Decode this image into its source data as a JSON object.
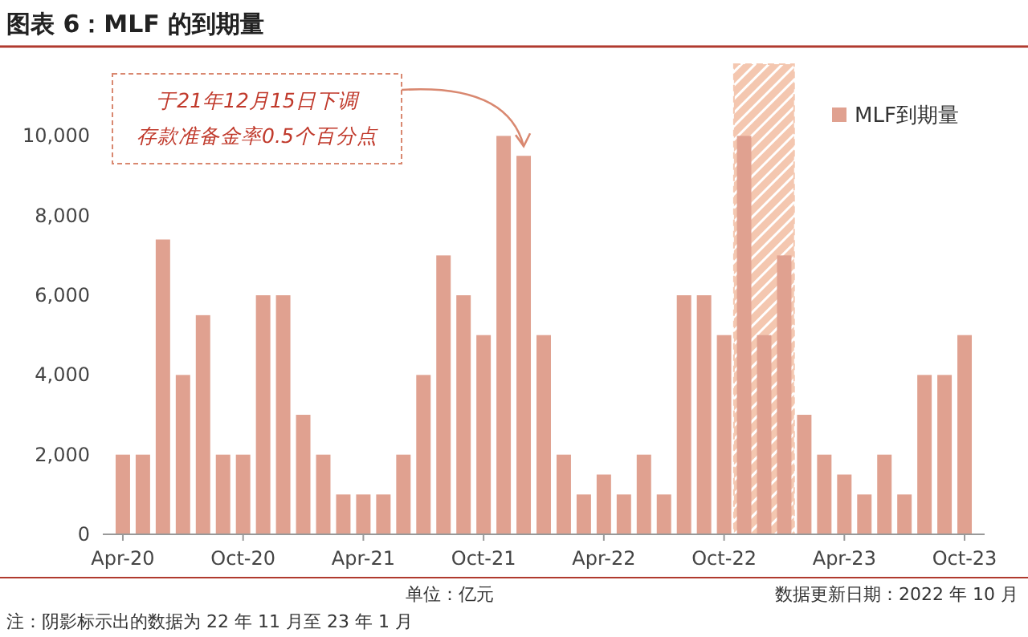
{
  "chart_data": {
    "type": "bar",
    "title": "图表 6：MLF 的到期量",
    "x": [
      "2020-04",
      "2020-05",
      "2020-06",
      "2020-07",
      "2020-08",
      "2020-09",
      "2020-10",
      "2020-11",
      "2020-12",
      "2021-01",
      "2021-02",
      "2021-03",
      "2021-04",
      "2021-05",
      "2021-06",
      "2021-07",
      "2021-08",
      "2021-09",
      "2021-10",
      "2021-11",
      "2021-12",
      "2022-01",
      "2022-02",
      "2022-03",
      "2022-04",
      "2022-05",
      "2022-06",
      "2022-07",
      "2022-08",
      "2022-09",
      "2022-10",
      "2022-11",
      "2022-12",
      "2023-01",
      "2023-02",
      "2023-03",
      "2023-04",
      "2023-05",
      "2023-06",
      "2023-07",
      "2023-08",
      "2023-09",
      "2023-10"
    ],
    "series": [
      {
        "name": "MLF到期量",
        "color": "#e0a190",
        "values": [
          2000,
          2000,
          7400,
          4000,
          5500,
          2000,
          2000,
          6000,
          6000,
          3000,
          2000,
          1000,
          1000,
          1000,
          2000,
          4000,
          7000,
          6000,
          5000,
          10000,
          9500,
          5000,
          2000,
          1000,
          1500,
          1000,
          2000,
          1000,
          6000,
          6000,
          5000,
          10000,
          5000,
          7000,
          3000,
          2000,
          1500,
          1000,
          2000,
          1000,
          4000,
          4000,
          5000
        ]
      }
    ],
    "xlim": [
      "2020-03",
      "2023-11"
    ],
    "xticks": [
      {
        "value": "2020-04",
        "label": "Apr-20"
      },
      {
        "value": "2020-10",
        "label": "Oct-20"
      },
      {
        "value": "2021-04",
        "label": "Apr-21"
      },
      {
        "value": "2021-10",
        "label": "Oct-21"
      },
      {
        "value": "2022-04",
        "label": "Apr-22"
      },
      {
        "value": "2022-10",
        "label": "Oct-22"
      },
      {
        "value": "2023-04",
        "label": "Apr-23"
      },
      {
        "value": "2023-10",
        "label": "Oct-23"
      }
    ],
    "ylim": [
      0,
      11800
    ],
    "yticks": [
      {
        "value": 0,
        "label": "0"
      },
      {
        "value": 2000,
        "label": "2,000"
      },
      {
        "value": 4000,
        "label": "4,000"
      },
      {
        "value": 6000,
        "label": "6,000"
      },
      {
        "value": 8000,
        "label": "8,000"
      },
      {
        "value": 10000,
        "label": "10,000"
      }
    ],
    "bands": [
      {
        "axis": "x",
        "from": "2022-10-16",
        "to": "2023-01-16",
        "color": "#f4c7b0"
      }
    ],
    "legend": "top right",
    "annotations": [
      {
        "text": "于21年12月15日下调存款准备金率0.5个百分点",
        "x": "2021-12",
        "y": 9500
      },
      "单位：亿元",
      "数据更新日期：2022 年 10 月",
      "注：阴影标示出的数据为 22 年 11 月至 23 年 1 月"
    ]
  }
}
